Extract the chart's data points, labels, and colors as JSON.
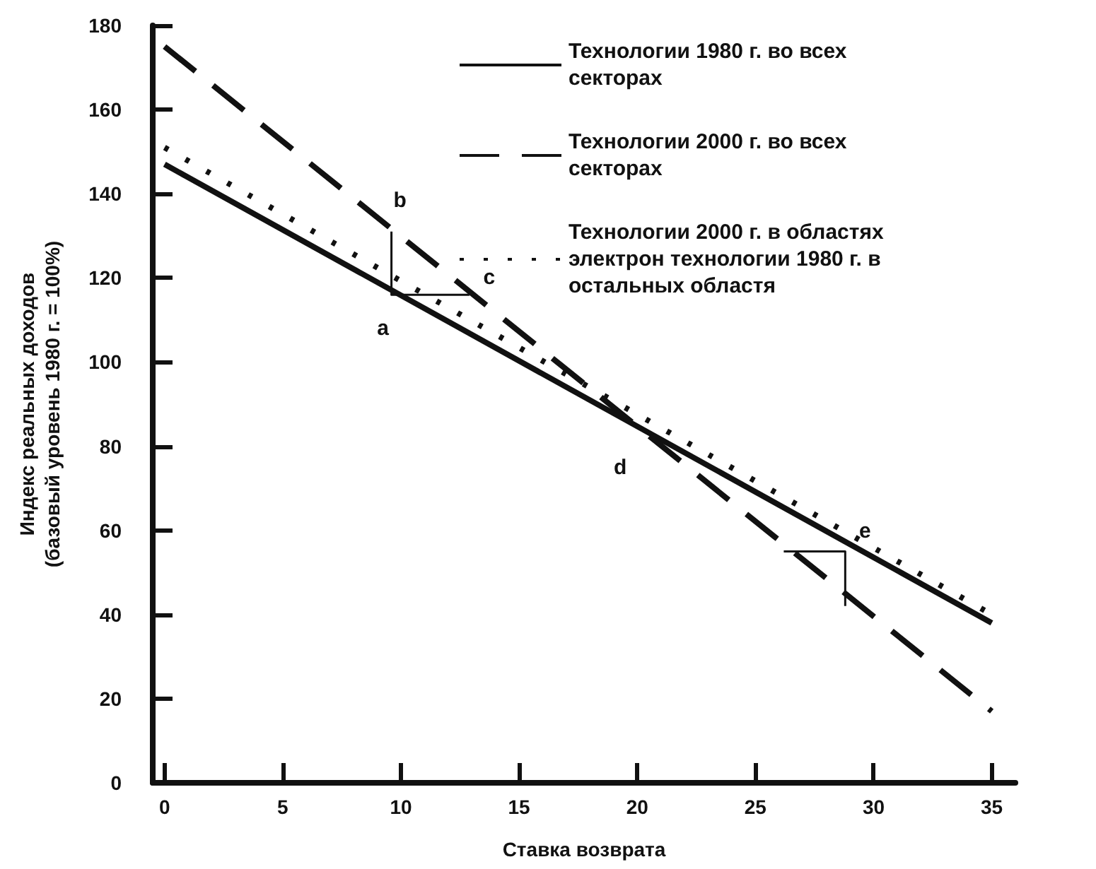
{
  "chart_data": {
    "type": "line",
    "xlabel": "Ставка возврата",
    "ylabel": "Индекс реальных доходов\n(базовый уровень 1980 г. = 100%)",
    "xlim": [
      -0.5,
      36
    ],
    "xticks": [
      0,
      5,
      10,
      15,
      20,
      25,
      30,
      35
    ],
    "ylim": [
      0,
      180
    ],
    "yticks": [
      0,
      20,
      40,
      60,
      80,
      100,
      120,
      140,
      160,
      180
    ],
    "grid": false,
    "legend": "top right",
    "marker": "none",
    "series": [
      {
        "name": "Технологии 1980 г. во всех секторах",
        "color": "#111111",
        "line_style": "solid",
        "x": [
          0,
          35
        ],
        "values": [
          147,
          38
        ]
      },
      {
        "name": "Технологии 2000 г. во всех секторах",
        "color": "#111111",
        "line_style": "dashed",
        "x": [
          0,
          35
        ],
        "values": [
          175,
          17
        ]
      },
      {
        "name": "Технологии 2000 г. в областях электрон технологии 1980 г. в остальных областя",
        "color": "#111111",
        "line_style": "dotted",
        "x": [
          0,
          35
        ],
        "values": [
          151,
          40
        ]
      },
      {
        "color": "#111111",
        "line_style": "solid",
        "x": [
          9.6,
          9.6,
          12.9
        ],
        "values": [
          131,
          116,
          116
        ]
      },
      {
        "color": "#111111",
        "line_style": "solid",
        "x": [
          26.2,
          28.8,
          28.8
        ],
        "values": [
          55,
          55,
          42
        ]
      }
    ],
    "annotations": [
      {
        "text": "a",
        "x": 9.6,
        "y": 116
      },
      {
        "text": "b",
        "x": 9.6,
        "y": 131
      },
      {
        "text": "c",
        "x": 12.9,
        "y": 116
      },
      {
        "text": "d",
        "x": 20,
        "y": 85
      },
      {
        "text": "e",
        "x": 28.8,
        "y": 55
      }
    ]
  }
}
